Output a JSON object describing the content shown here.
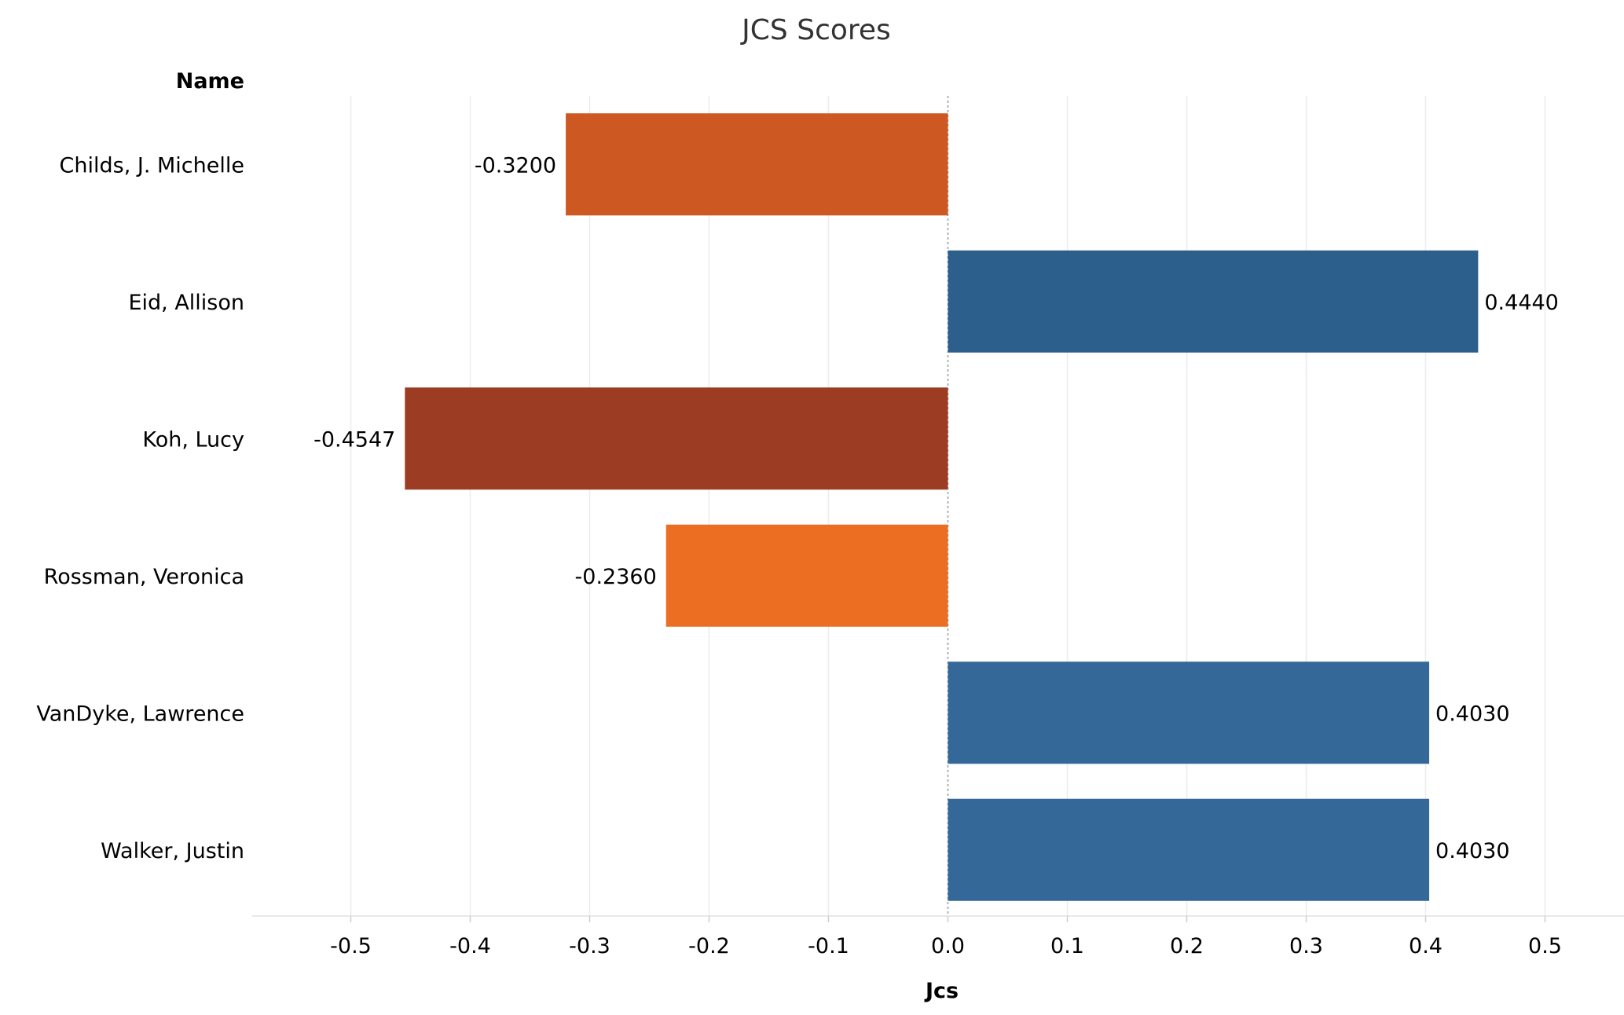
{
  "chart_data": {
    "type": "bar",
    "orientation": "horizontal",
    "title": "JCS Scores",
    "row_header": "Name",
    "xlabel": "Jcs",
    "categories": [
      "Childs, J. Michelle",
      "Eid, Allison",
      "Koh, Lucy",
      "Rossman, Veronica",
      "VanDyke, Lawrence",
      "Walker, Justin"
    ],
    "values": [
      -0.32,
      0.444,
      -0.4547,
      -0.236,
      0.403,
      0.403
    ],
    "value_labels": [
      "-0.3200",
      "0.4440",
      "-0.4547",
      "-0.2360",
      "0.4030",
      "0.4030"
    ],
    "colors": [
      "#cd5822",
      "#2c5f8c",
      "#9c3c22",
      "#eb6e22",
      "#336899",
      "#336899"
    ],
    "xlim": [
      -0.58,
      0.58
    ],
    "xticks": [
      -0.5,
      -0.4,
      -0.3,
      -0.2,
      -0.1,
      0.0,
      0.1,
      0.2,
      0.3,
      0.4,
      0.5
    ],
    "xtick_labels": [
      "-0.5",
      "-0.4",
      "-0.3",
      "-0.2",
      "-0.1",
      "0.0",
      "0.1",
      "0.2",
      "0.3",
      "0.4",
      "0.5"
    ],
    "grid": true,
    "legend": "none"
  }
}
